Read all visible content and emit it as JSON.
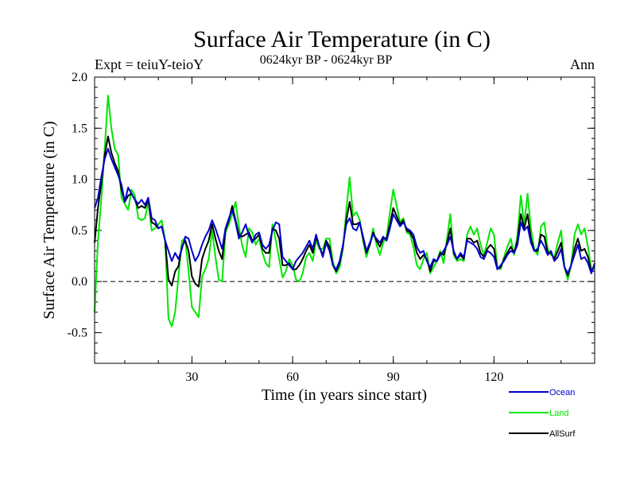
{
  "chart_data": {
    "type": "line",
    "title": "Surface Air Temperature (in C)",
    "subtitle": "0624kyr BP - 0624kyr BP",
    "left_label": "Expt = teiuY-teioY",
    "right_label": "Ann",
    "xlabel": "Time (in years since start)",
    "ylabel": "Surface Air Temperature (in C)",
    "xlim": [
      1,
      150
    ],
    "ylim": [
      -0.8,
      2.0
    ],
    "x_ticks": [
      30,
      60,
      90,
      120
    ],
    "x_tick_labels": [
      "30",
      "60",
      "90",
      "120"
    ],
    "y_ticks": [
      -0.5,
      0.0,
      0.5,
      1.0,
      1.5,
      2.0
    ],
    "y_tick_labels": [
      "-0.5",
      "0.0",
      "0.5",
      "1.0",
      "1.5",
      "2.0"
    ],
    "zero_line": true,
    "legend_position": "bottom-right",
    "series": [
      {
        "name": "Ocean",
        "color": "#0000cc",
        "values": [
          0.72,
          0.82,
          1.02,
          1.2,
          1.3,
          1.2,
          1.12,
          1.04,
          0.95,
          0.78,
          0.92,
          0.86,
          0.8,
          0.76,
          0.8,
          0.75,
          0.82,
          0.62,
          0.6,
          0.52,
          0.54,
          0.4,
          0.3,
          0.2,
          0.28,
          0.22,
          0.32,
          0.44,
          0.42,
          0.3,
          0.2,
          0.26,
          0.36,
          0.44,
          0.5,
          0.6,
          0.52,
          0.42,
          0.32,
          0.52,
          0.62,
          0.7,
          0.58,
          0.42,
          0.48,
          0.56,
          0.45,
          0.38,
          0.46,
          0.48,
          0.36,
          0.32,
          0.36,
          0.5,
          0.58,
          0.56,
          0.24,
          0.2,
          0.16,
          0.12,
          0.2,
          0.24,
          0.28,
          0.34,
          0.4,
          0.32,
          0.46,
          0.34,
          0.24,
          0.38,
          0.3,
          0.16,
          0.12,
          0.2,
          0.36,
          0.56,
          0.62,
          0.52,
          0.5,
          0.58,
          0.44,
          0.3,
          0.38,
          0.46,
          0.42,
          0.38,
          0.44,
          0.4,
          0.52,
          0.66,
          0.6,
          0.54,
          0.58,
          0.52,
          0.5,
          0.46,
          0.34,
          0.28,
          0.3,
          0.2,
          0.14,
          0.22,
          0.2,
          0.26,
          0.3,
          0.36,
          0.44,
          0.3,
          0.22,
          0.28,
          0.24,
          0.4,
          0.38,
          0.36,
          0.32,
          0.24,
          0.22,
          0.3,
          0.28,
          0.24,
          0.12,
          0.16,
          0.2,
          0.26,
          0.3,
          0.28,
          0.36,
          0.58,
          0.5,
          0.54,
          0.38,
          0.3,
          0.32,
          0.4,
          0.34,
          0.26,
          0.3,
          0.2,
          0.24,
          0.32,
          0.14,
          0.08,
          0.16,
          0.26,
          0.36,
          0.22,
          0.24,
          0.18,
          0.08,
          0.18
        ]
      },
      {
        "name": "Land",
        "color": "#00e600",
        "values": [
          -0.3,
          0.4,
          0.8,
          1.3,
          1.82,
          1.5,
          1.3,
          1.24,
          0.82,
          0.76,
          0.7,
          0.9,
          0.84,
          0.62,
          0.6,
          0.62,
          0.78,
          0.5,
          0.52,
          0.56,
          0.6,
          0.4,
          -0.36,
          -0.44,
          -0.3,
          0.05,
          0.4,
          0.42,
          0.1,
          -0.25,
          -0.3,
          -0.35,
          0.05,
          0.12,
          0.22,
          0.5,
          0.24,
          0.02,
          0.0,
          0.48,
          0.56,
          0.66,
          0.78,
          0.54,
          0.35,
          0.24,
          0.52,
          0.48,
          0.36,
          0.42,
          0.28,
          0.18,
          0.14,
          0.56,
          0.4,
          0.22,
          0.04,
          0.1,
          0.22,
          0.16,
          0.02,
          0.0,
          0.08,
          0.24,
          0.28,
          0.2,
          0.4,
          0.32,
          0.32,
          0.42,
          0.42,
          0.2,
          0.08,
          0.14,
          0.32,
          0.7,
          1.02,
          0.64,
          0.68,
          0.6,
          0.4,
          0.24,
          0.36,
          0.52,
          0.36,
          0.26,
          0.38,
          0.44,
          0.68,
          0.9,
          0.74,
          0.58,
          0.62,
          0.48,
          0.46,
          0.34,
          0.16,
          0.12,
          0.22,
          0.28,
          0.08,
          0.14,
          0.2,
          0.3,
          0.18,
          0.42,
          0.66,
          0.26,
          0.2,
          0.22,
          0.2,
          0.46,
          0.54,
          0.46,
          0.52,
          0.36,
          0.26,
          0.38,
          0.52,
          0.46,
          0.14,
          0.12,
          0.24,
          0.34,
          0.42,
          0.26,
          0.46,
          0.84,
          0.56,
          0.86,
          0.52,
          0.32,
          0.26,
          0.54,
          0.58,
          0.32,
          0.26,
          0.24,
          0.38,
          0.5,
          0.14,
          0.02,
          0.16,
          0.46,
          0.56,
          0.46,
          0.52,
          0.34,
          0.12,
          0.12
        ]
      },
      {
        "name": "AllSurf",
        "color": "#000000",
        "values": [
          0.38,
          0.72,
          0.96,
          1.24,
          1.42,
          1.26,
          1.16,
          1.08,
          0.9,
          0.78,
          0.84,
          0.86,
          0.8,
          0.72,
          0.74,
          0.72,
          0.8,
          0.58,
          0.56,
          0.52,
          0.54,
          0.4,
          0.02,
          -0.04,
          0.1,
          0.15,
          0.34,
          0.4,
          0.3,
          0.05,
          -0.02,
          -0.05,
          0.22,
          0.32,
          0.4,
          0.56,
          0.42,
          0.3,
          0.22,
          0.5,
          0.6,
          0.74,
          0.6,
          0.46,
          0.44,
          0.46,
          0.48,
          0.4,
          0.42,
          0.46,
          0.32,
          0.28,
          0.28,
          0.52,
          0.5,
          0.42,
          0.16,
          0.16,
          0.18,
          0.12,
          0.12,
          0.16,
          0.22,
          0.3,
          0.36,
          0.28,
          0.44,
          0.34,
          0.26,
          0.4,
          0.34,
          0.16,
          0.1,
          0.18,
          0.34,
          0.6,
          0.78,
          0.56,
          0.56,
          0.58,
          0.42,
          0.28,
          0.36,
          0.48,
          0.4,
          0.34,
          0.42,
          0.42,
          0.56,
          0.72,
          0.64,
          0.56,
          0.6,
          0.5,
          0.48,
          0.42,
          0.28,
          0.22,
          0.26,
          0.22,
          0.1,
          0.2,
          0.2,
          0.28,
          0.26,
          0.38,
          0.52,
          0.28,
          0.22,
          0.26,
          0.22,
          0.42,
          0.42,
          0.38,
          0.4,
          0.28,
          0.24,
          0.32,
          0.36,
          0.32,
          0.12,
          0.14,
          0.22,
          0.28,
          0.34,
          0.28,
          0.4,
          0.66,
          0.52,
          0.66,
          0.42,
          0.3,
          0.3,
          0.46,
          0.44,
          0.28,
          0.28,
          0.22,
          0.3,
          0.38,
          0.14,
          0.06,
          0.16,
          0.32,
          0.42,
          0.3,
          0.32,
          0.24,
          0.1,
          0.16
        ]
      }
    ]
  }
}
